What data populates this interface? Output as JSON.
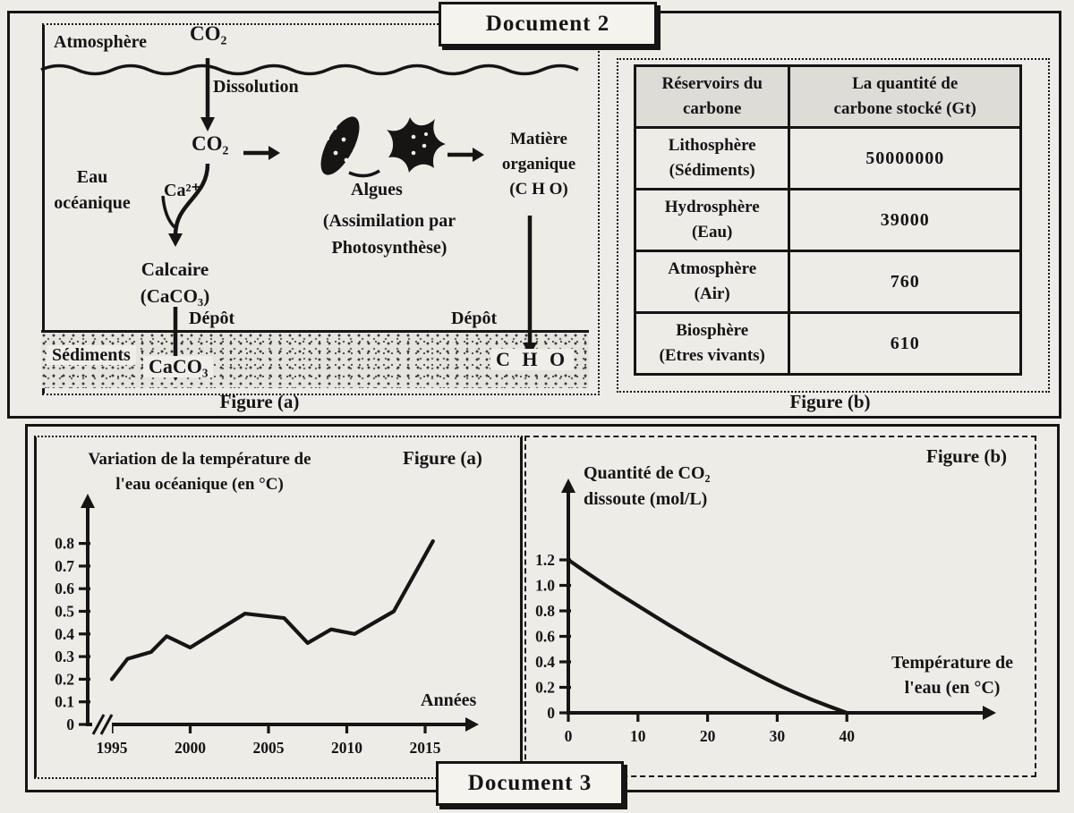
{
  "page": {
    "paper_color": "#edece7",
    "ink_color": "#171513"
  },
  "document2": {
    "title": "Document 2",
    "figure_a": {
      "caption": "Figure (a)",
      "labels": {
        "atmosphere": "Atmosphère",
        "co2_air": "CO₂",
        "dissolution": "Dissolution",
        "co2_water": "CO₂",
        "eau_line1": "Eau",
        "eau_line2": "océanique",
        "calcium": "Ca²⁺",
        "algues": "Algues",
        "assimilation_line1": "(Assimilation par",
        "assimilation_line2": "Photosynthèse)",
        "matiere_line1": "Matière",
        "matiere_line2": "organique",
        "matiere_line3": "(C H O)",
        "calcaire_line1": "Calcaire",
        "calcaire_line2": "(CaCO₃)",
        "depot_left": "Dépôt",
        "depot_right": "Dépôt",
        "sediments": "Sédiments",
        "caco3_sediment": "CaCO₃",
        "cho_sediment": "C H O"
      }
    },
    "figure_b": {
      "caption": "Figure (b)",
      "table": {
        "col1_header_line1": "Réservoirs du",
        "col1_header_line2": "carbone",
        "col2_header_line1": "La quantité de",
        "col2_header_line2": "carbone stocké (Gt)",
        "rows": [
          {
            "name_line1": "Lithosphère",
            "name_line2": "(Sédiments)",
            "value": "50000000"
          },
          {
            "name_line1": "Hydrosphère",
            "name_line2": "(Eau)",
            "value": "39000"
          },
          {
            "name_line1": "Atmosphère",
            "name_line2": "(Air)",
            "value": "760"
          },
          {
            "name_line1": "Biosphère",
            "name_line2": "(Etres vivants)",
            "value": "610"
          }
        ]
      }
    }
  },
  "document3": {
    "title": "Document 3",
    "figure_a": {
      "caption": "Figure (a)",
      "title_line1": "Variation de la température de",
      "title_line2": "l'eau océanique (en °C)",
      "xlabel": "Années"
    },
    "figure_b": {
      "caption": "Figure (b)",
      "ylabel_line1": "Quantité de CO₂",
      "ylabel_line2": "dissoute (mol/L)",
      "xlabel_line1": "Température de",
      "xlabel_line2": "l'eau (en °C)"
    }
  },
  "chart_data": [
    {
      "type": "line",
      "title": "Variation de la température de l'eau océanique (en °C)",
      "xlabel": "Années",
      "ylabel": "Variation de température (°C)",
      "x": [
        1995,
        1996,
        1997.5,
        1998.5,
        2000,
        2003.5,
        2006,
        2007.5,
        2009,
        2010.5,
        2012,
        2013,
        2015.5
      ],
      "y": [
        0.2,
        0.29,
        0.32,
        0.39,
        0.34,
        0.49,
        0.47,
        0.36,
        0.42,
        0.4,
        0.46,
        0.5,
        0.81
      ],
      "xticks": [
        1995,
        2000,
        2005,
        2010,
        2015
      ],
      "yticks": [
        0,
        0.1,
        0.2,
        0.3,
        0.4,
        0.5,
        0.6,
        0.7,
        0.8
      ],
      "xlim": [
        1995,
        2016
      ],
      "ylim": [
        0,
        0.85
      ],
      "grid": false,
      "axis_break_x": true
    },
    {
      "type": "line",
      "title": "Quantité de CO₂ dissoute (mol/L)",
      "xlabel": "Température de l'eau (en °C)",
      "ylabel": "Quantité de CO₂ dissoute (mol/L)",
      "x": [
        0,
        5,
        10,
        15,
        20,
        25,
        30,
        35,
        40
      ],
      "y": [
        1.2,
        1.01,
        0.84,
        0.67,
        0.51,
        0.36,
        0.22,
        0.1,
        0
      ],
      "xticks": [
        0,
        10,
        20,
        30,
        40
      ],
      "yticks": [
        0,
        0.2,
        0.4,
        0.6,
        0.8,
        1.0,
        1.2
      ],
      "xlim": [
        0,
        48
      ],
      "ylim": [
        0,
        1.35
      ],
      "grid": false
    }
  ]
}
